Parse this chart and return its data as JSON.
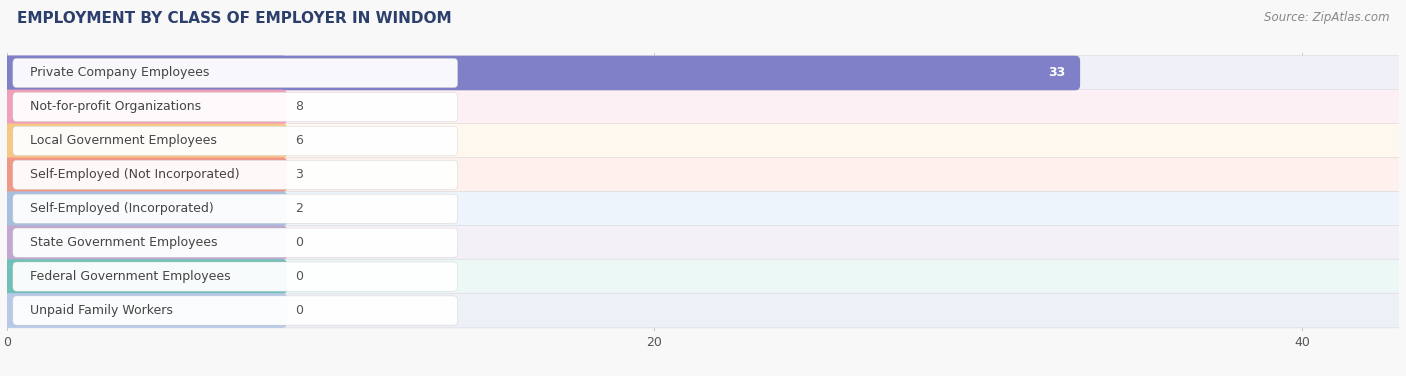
{
  "title": "EMPLOYMENT BY CLASS OF EMPLOYER IN WINDOM",
  "source": "Source: ZipAtlas.com",
  "categories": [
    "Private Company Employees",
    "Not-for-profit Organizations",
    "Local Government Employees",
    "Self-Employed (Not Incorporated)",
    "Self-Employed (Incorporated)",
    "State Government Employees",
    "Federal Government Employees",
    "Unpaid Family Workers"
  ],
  "values": [
    33,
    8,
    6,
    3,
    2,
    0,
    0,
    0
  ],
  "bar_colors": [
    "#8080c8",
    "#f0a0b8",
    "#f5c888",
    "#f09888",
    "#a8c0e0",
    "#c0a8d0",
    "#70c0b8",
    "#b8c8e8"
  ],
  "bar_bg_color": "#eeeeee",
  "row_bg_colors": [
    "#f0f0f8",
    "#fdf0f4",
    "#fef8ee",
    "#fef0ec",
    "#eef4fc",
    "#f4f0f8",
    "#ecf8f6",
    "#eef0f8"
  ],
  "xlim": [
    0,
    43
  ],
  "xticks": [
    0,
    20,
    40
  ],
  "value_color_white": "#ffffff",
  "value_color_dark": "#555555",
  "text_color": "#444444",
  "background_color": "#f8f8f8",
  "title_fontsize": 11,
  "bar_label_fontsize": 9,
  "value_fontsize": 9,
  "source_fontsize": 8.5
}
